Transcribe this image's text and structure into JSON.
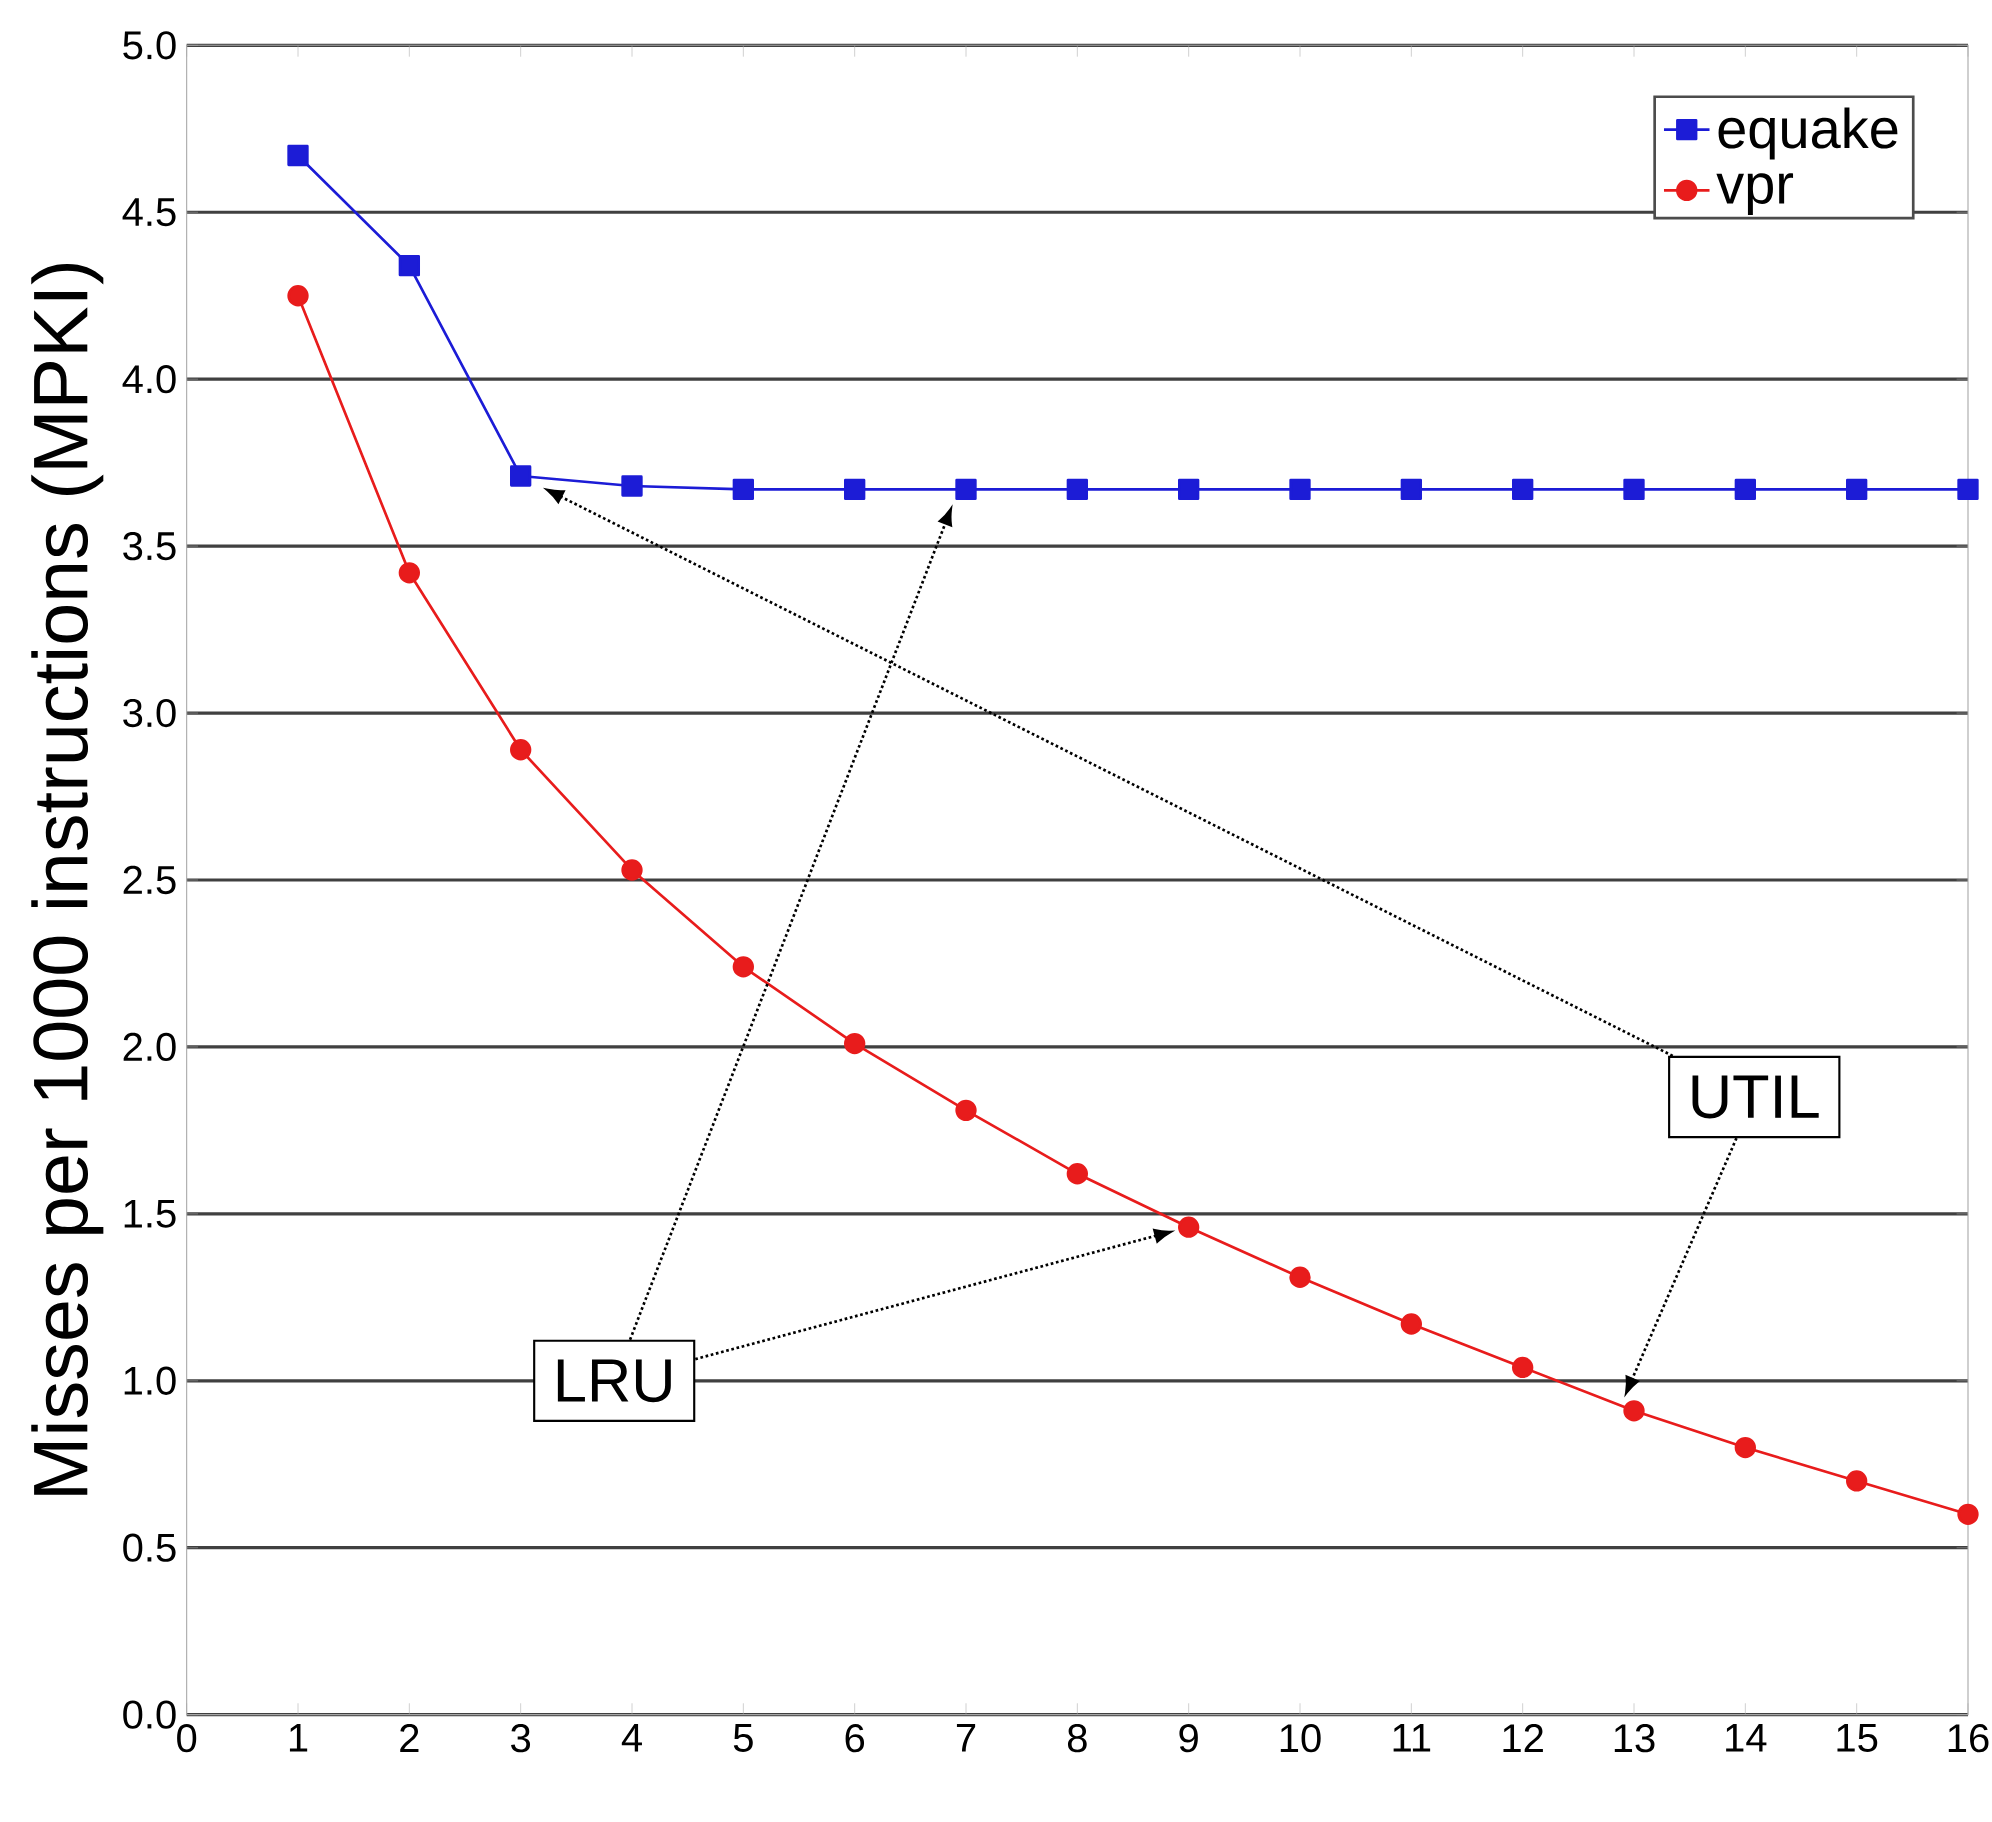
{
  "chart_data": {
    "type": "line",
    "ylabel": "Misses per 1000 instructions (MPKI)",
    "x": [
      1,
      2,
      3,
      4,
      5,
      6,
      7,
      8,
      9,
      10,
      11,
      12,
      13,
      14,
      15,
      16
    ],
    "series": [
      {
        "name": "equake",
        "color": "#1c1cd6",
        "marker": "square",
        "values": [
          4.67,
          4.34,
          3.71,
          3.68,
          3.67,
          3.67,
          3.67,
          3.67,
          3.67,
          3.67,
          3.67,
          3.67,
          3.67,
          3.67,
          3.67,
          3.67
        ]
      },
      {
        "name": "vpr",
        "color": "#e81c1c",
        "marker": "circle",
        "values": [
          4.25,
          3.42,
          2.89,
          2.53,
          2.24,
          2.01,
          1.81,
          1.62,
          1.46,
          1.31,
          1.17,
          1.04,
          0.91,
          0.8,
          0.7,
          0.6
        ]
      }
    ],
    "xlim": [
      0,
      16
    ],
    "xticks": [
      0,
      1,
      2,
      3,
      4,
      5,
      6,
      7,
      8,
      9,
      10,
      11,
      12,
      13,
      14,
      15,
      16
    ],
    "ylim": [
      0,
      5
    ],
    "yticks": [
      {
        "value": 0,
        "label": "0.0"
      },
      {
        "value": 0.5,
        "label": "0.5"
      },
      {
        "value": 1,
        "label": "1.0"
      },
      {
        "value": 1.5,
        "label": "1.5"
      },
      {
        "value": 2,
        "label": "2.0"
      },
      {
        "value": 2.5,
        "label": "2.5"
      },
      {
        "value": 3,
        "label": "3.0"
      },
      {
        "value": 3.5,
        "label": "3.5"
      },
      {
        "value": 4,
        "label": "4.0"
      },
      {
        "value": 4.5,
        "label": "4.5"
      },
      {
        "value": 5,
        "label": "5.0"
      }
    ],
    "grid": "y",
    "legend": "top right",
    "annotations": [
      "LRU",
      "UTIL"
    ]
  }
}
